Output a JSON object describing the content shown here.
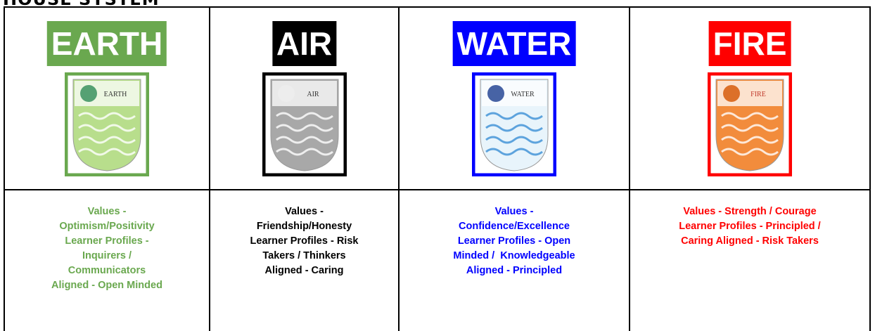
{
  "title": "HOUSE SYSTEM",
  "houses": [
    {
      "name": "EARTH",
      "emblem_text": "EARTH",
      "color": "#6aa84f",
      "description": [
        "Values -",
        "Optimism/Positivity",
        "Learner Profiles -",
        "Inquirers /",
        "Communicators",
        "Aligned - Open Minded"
      ]
    },
    {
      "name": "AIR",
      "emblem_text": "AIR",
      "color": "#000000",
      "description": [
        "Values -",
        "Friendship/Honesty",
        "Learner Profiles - Risk",
        "Takers / Thinkers",
        "Aligned - Caring"
      ]
    },
    {
      "name": "WATER",
      "emblem_text": "WATER",
      "color": "#0000ff",
      "description": [
        "Values -",
        "Confidence/Excellence",
        "Learner Profiles - Open",
        "Minded /  Knowledgeable",
        "Aligned - Principled"
      ]
    },
    {
      "name": "FIRE",
      "emblem_text": "FIRE",
      "color": "#ff0000",
      "description": [
        "Values - Strength / Courage",
        "Learner Profiles - Principled /",
        "Caring Aligned - Risk Takers"
      ]
    }
  ]
}
